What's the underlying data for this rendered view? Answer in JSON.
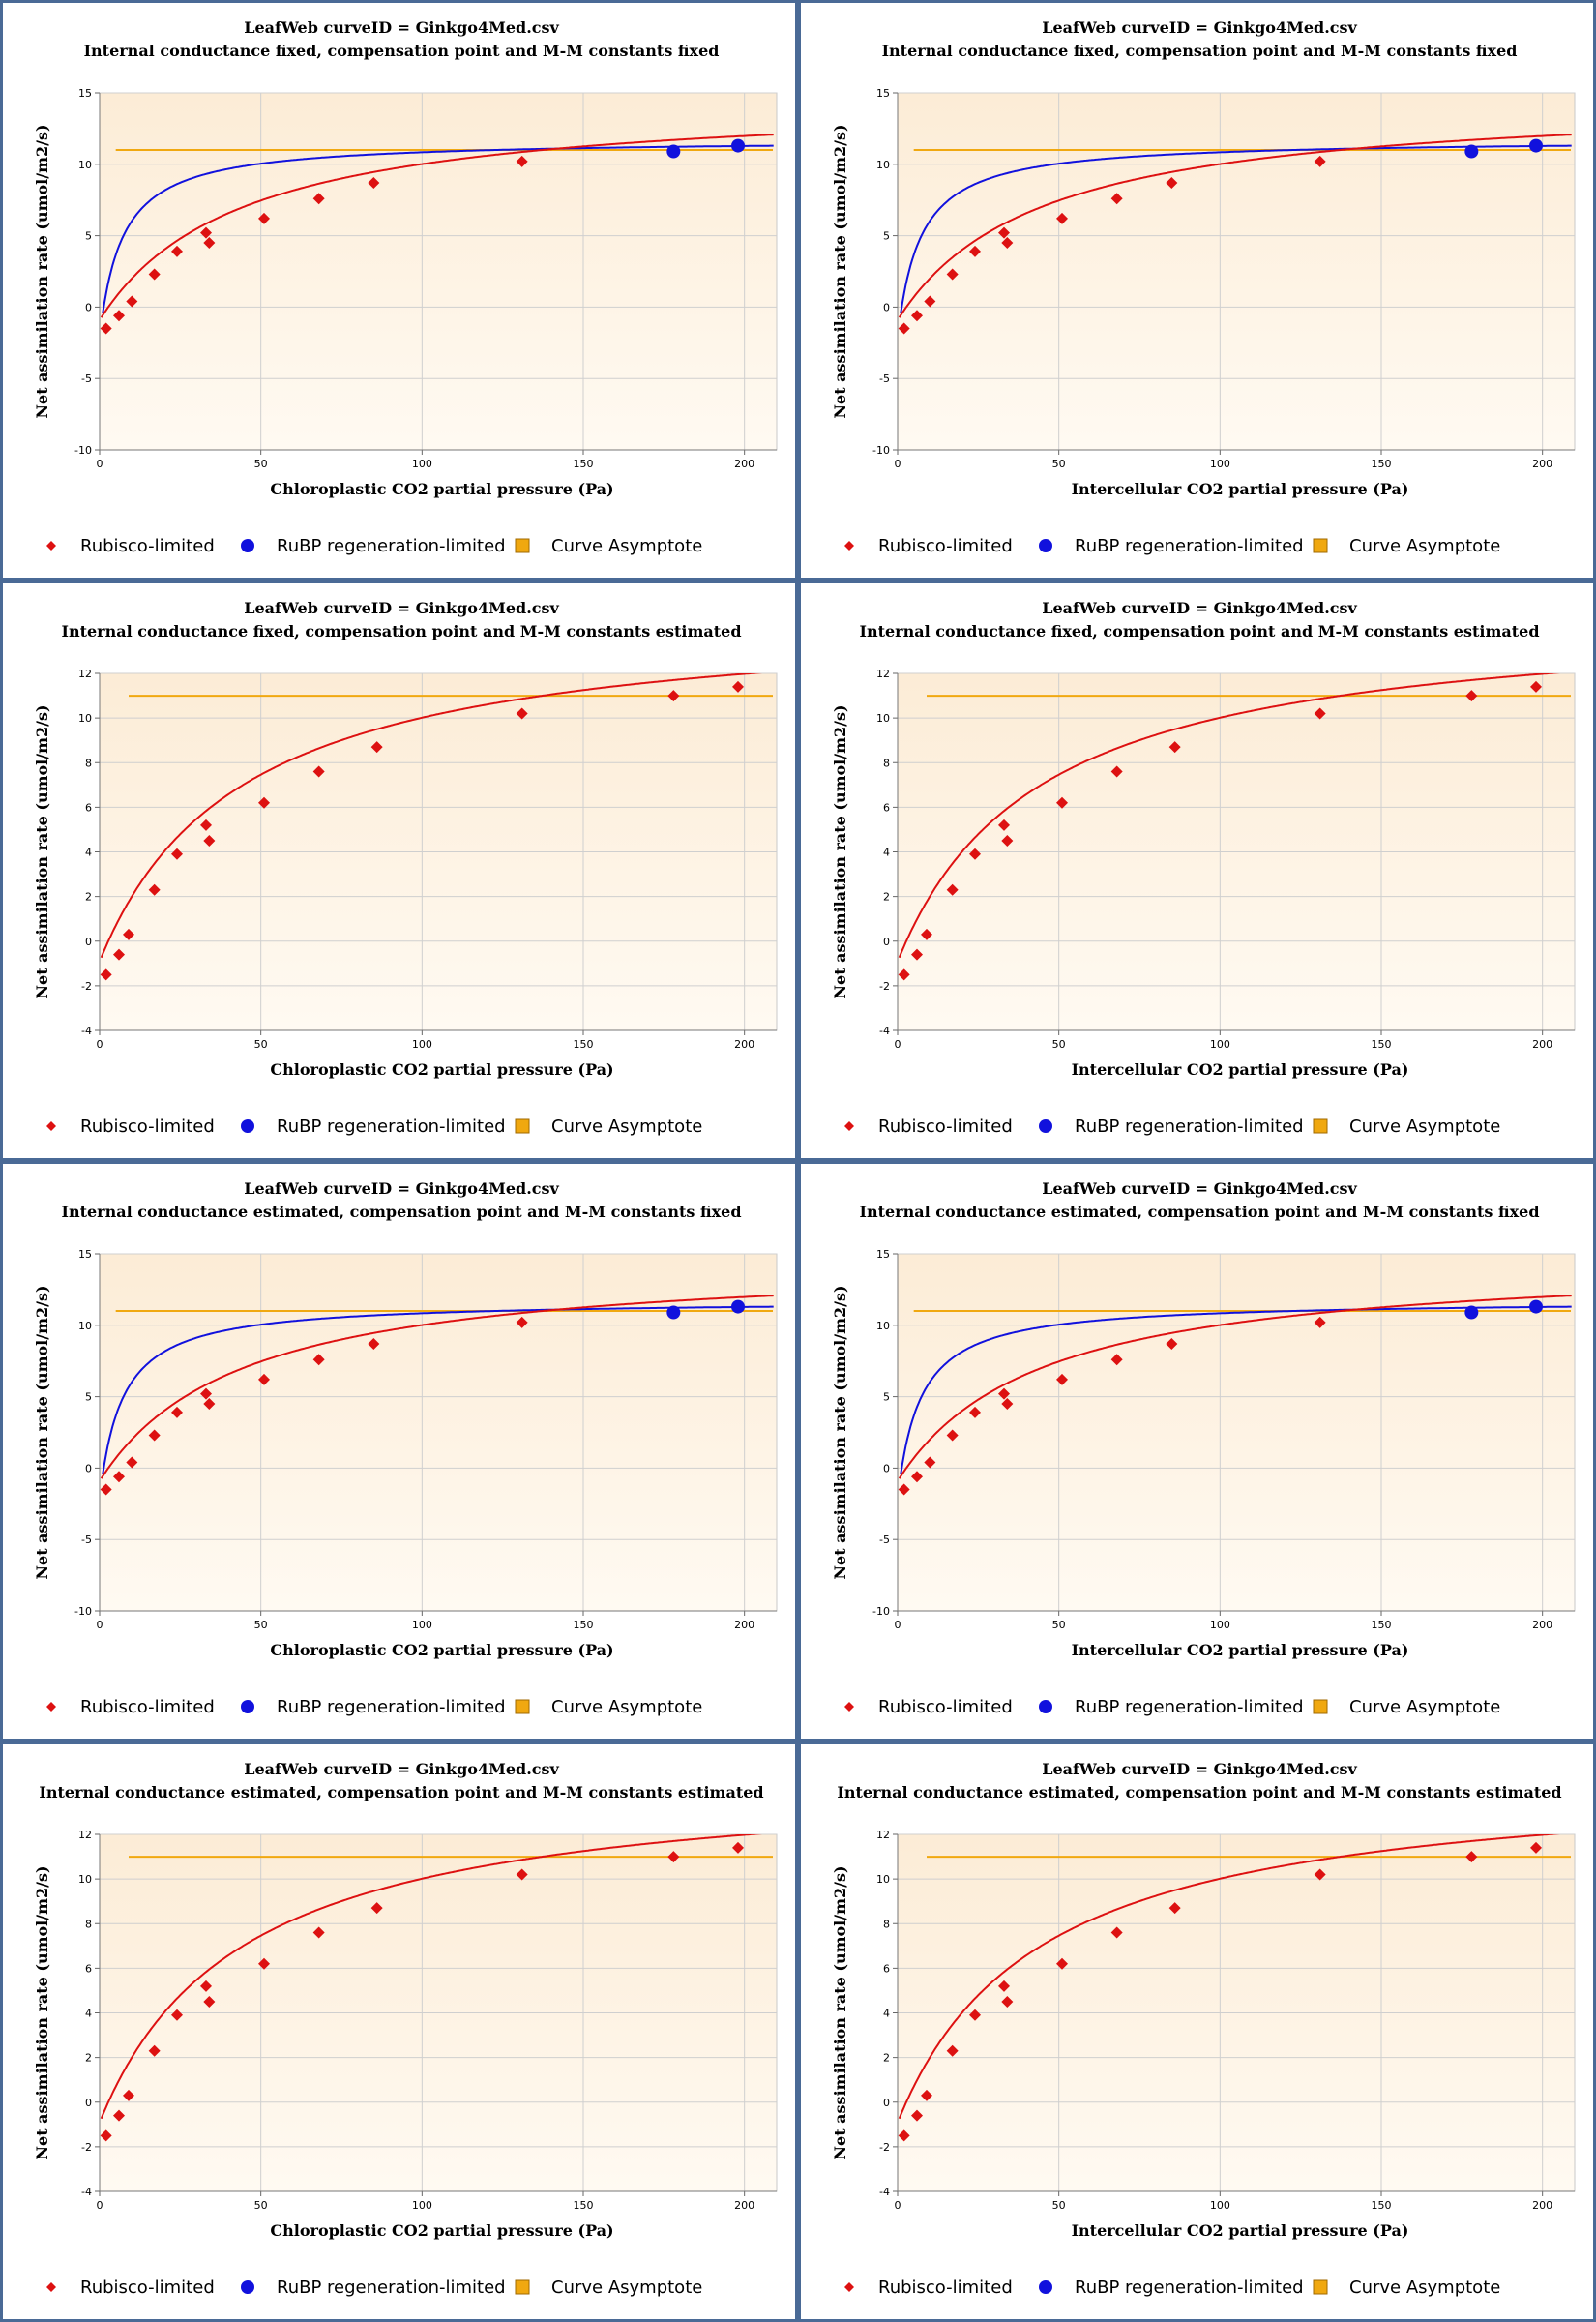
{
  "chart_data": [
    {
      "type": "scatter",
      "file_title": "LeafWeb curveID = Ginkgo4Med.csv",
      "title": "Internal conductance fixed, compensation point and M-M constants fixed",
      "xlabel": "Chloroplastic CO2 partial pressure (Pa)",
      "ylabel": "Net assimilation rate (umol/m2/s)",
      "xlim": [
        0,
        210
      ],
      "ylim": [
        -10,
        15
      ],
      "xticks": [
        0,
        50,
        100,
        150,
        200
      ],
      "yticks": [
        -10,
        -5,
        0,
        5,
        10,
        15
      ],
      "grid": true,
      "legend_position": "bottom",
      "series": [
        {
          "name": "Rubisco-limited",
          "color": "#dd1111",
          "marker": "diamond",
          "points": [
            [
              2,
              -1.5
            ],
            [
              6,
              -0.6
            ],
            [
              10,
              0.4
            ],
            [
              17,
              2.3
            ],
            [
              24,
              3.9
            ],
            [
              33,
              5.2
            ],
            [
              34,
              4.5
            ],
            [
              51,
              6.2
            ],
            [
              68,
              7.6
            ],
            [
              85,
              8.7
            ],
            [
              131,
              10.2
            ]
          ]
        },
        {
          "name": "RuBP regeneration-limited",
          "color": "#1111dd",
          "marker": "circle",
          "points": [
            [
              178,
              10.9
            ],
            [
              198,
              11.3
            ]
          ]
        },
        {
          "name": "Curve Asymptote",
          "color": "#f0a810",
          "marker": "square",
          "y": 11.0
        }
      ],
      "curves": {
        "rubisco_line": {
          "color": "#dd1111",
          "a": 14.81,
          "b": 43.9,
          "c": 2.7
        },
        "rubp_line": {
          "color": "#1111dd",
          "a": 11.75,
          "b": 7.0,
          "c": 1.27
        },
        "asymptote_from": 5
      }
    },
    {
      "type": "scatter",
      "file_title": "LeafWeb curveID = Ginkgo4Med.csv",
      "title": "Internal conductance fixed, compensation point and M-M constants fixed",
      "xlabel": "Intercellular CO2 partial pressure (Pa)",
      "ylabel": "Net assimilation rate (umol/m2/s)",
      "xlim": [
        0,
        210
      ],
      "ylim": [
        -10,
        15
      ],
      "xticks": [
        0,
        50,
        100,
        150,
        200
      ],
      "yticks": [
        -10,
        -5,
        0,
        5,
        10,
        15
      ],
      "grid": true,
      "legend_position": "bottom",
      "series": [
        {
          "name": "Rubisco-limited",
          "color": "#dd1111",
          "marker": "diamond",
          "points": [
            [
              2,
              -1.5
            ],
            [
              6,
              -0.6
            ],
            [
              10,
              0.4
            ],
            [
              17,
              2.3
            ],
            [
              24,
              3.9
            ],
            [
              33,
              5.2
            ],
            [
              34,
              4.5
            ],
            [
              51,
              6.2
            ],
            [
              68,
              7.6
            ],
            [
              85,
              8.7
            ],
            [
              131,
              10.2
            ]
          ]
        },
        {
          "name": "RuBP regeneration-limited",
          "color": "#1111dd",
          "marker": "circle",
          "points": [
            [
              178,
              10.9
            ],
            [
              198,
              11.3
            ]
          ]
        },
        {
          "name": "Curve Asymptote",
          "color": "#f0a810",
          "marker": "square",
          "y": 11.0
        }
      ],
      "curves": {
        "rubisco_line": {
          "color": "#dd1111",
          "a": 14.81,
          "b": 43.9,
          "c": 2.7
        },
        "rubp_line": {
          "color": "#1111dd",
          "a": 11.75,
          "b": 7.0,
          "c": 1.27
        },
        "asymptote_from": 5
      }
    },
    {
      "type": "scatter",
      "file_title": "LeafWeb curveID = Ginkgo4Med.csv",
      "title": "Internal conductance fixed, compensation point and M-M constants estimated",
      "xlabel": "Chloroplastic CO2 partial pressure (Pa)",
      "ylabel": "Net assimilation rate (umol/m2/s)",
      "xlim": [
        0,
        210
      ],
      "ylim": [
        -4,
        12
      ],
      "xticks": [
        0,
        50,
        100,
        150,
        200
      ],
      "yticks": [
        -4,
        -2,
        0,
        2,
        4,
        6,
        8,
        10,
        12
      ],
      "grid": true,
      "legend_position": "bottom",
      "series": [
        {
          "name": "Rubisco-limited",
          "color": "#dd1111",
          "marker": "diamond",
          "points": [
            [
              2,
              -1.5
            ],
            [
              6,
              -0.6
            ],
            [
              9,
              0.3
            ],
            [
              17,
              2.3
            ],
            [
              24,
              3.9
            ],
            [
              33,
              5.2
            ],
            [
              34,
              4.5
            ],
            [
              51,
              6.2
            ],
            [
              68,
              7.6
            ],
            [
              86,
              8.7
            ],
            [
              131,
              10.2
            ],
            [
              178,
              11.0
            ],
            [
              198,
              11.4
            ]
          ]
        },
        {
          "name": "RuBP regeneration-limited",
          "color": "#1111dd",
          "marker": "circle",
          "points": []
        },
        {
          "name": "Curve Asymptote",
          "color": "#f0a810",
          "marker": "square",
          "y": 11.0
        }
      ],
      "curves": {
        "rubisco_line": {
          "color": "#dd1111",
          "a": 14.81,
          "b": 43.9,
          "c": 2.7
        },
        "asymptote_from": 9
      }
    },
    {
      "type": "scatter",
      "file_title": "LeafWeb curveID = Ginkgo4Med.csv",
      "title": "Internal conductance fixed, compensation point and M-M constants estimated",
      "xlabel": "Intercellular CO2 partial pressure (Pa)",
      "ylabel": "Net assimilation rate (umol/m2/s)",
      "xlim": [
        0,
        210
      ],
      "ylim": [
        -4,
        12
      ],
      "xticks": [
        0,
        50,
        100,
        150,
        200
      ],
      "yticks": [
        -4,
        -2,
        0,
        2,
        4,
        6,
        8,
        10,
        12
      ],
      "grid": true,
      "legend_position": "bottom",
      "series": [
        {
          "name": "Rubisco-limited",
          "color": "#dd1111",
          "marker": "diamond",
          "points": [
            [
              2,
              -1.5
            ],
            [
              6,
              -0.6
            ],
            [
              9,
              0.3
            ],
            [
              17,
              2.3
            ],
            [
              24,
              3.9
            ],
            [
              33,
              5.2
            ],
            [
              34,
              4.5
            ],
            [
              51,
              6.2
            ],
            [
              68,
              7.6
            ],
            [
              86,
              8.7
            ],
            [
              131,
              10.2
            ],
            [
              178,
              11.0
            ],
            [
              198,
              11.4
            ]
          ]
        },
        {
          "name": "RuBP regeneration-limited",
          "color": "#1111dd",
          "marker": "circle",
          "points": []
        },
        {
          "name": "Curve Asymptote",
          "color": "#f0a810",
          "marker": "square",
          "y": 11.0
        }
      ],
      "curves": {
        "rubisco_line": {
          "color": "#dd1111",
          "a": 14.81,
          "b": 43.9,
          "c": 2.7
        },
        "asymptote_from": 9
      }
    },
    {
      "type": "scatter",
      "file_title": "LeafWeb curveID = Ginkgo4Med.csv",
      "title": "Internal conductance estimated, compensation point and M-M constants fixed",
      "xlabel": "Chloroplastic CO2 partial pressure (Pa)",
      "ylabel": "Net assimilation rate (umol/m2/s)",
      "xlim": [
        0,
        210
      ],
      "ylim": [
        -10,
        15
      ],
      "xticks": [
        0,
        50,
        100,
        150,
        200
      ],
      "yticks": [
        -10,
        -5,
        0,
        5,
        10,
        15
      ],
      "grid": true,
      "legend_position": "bottom",
      "series": [
        {
          "name": "Rubisco-limited",
          "color": "#dd1111",
          "marker": "diamond",
          "points": [
            [
              2,
              -1.5
            ],
            [
              6,
              -0.6
            ],
            [
              10,
              0.4
            ],
            [
              17,
              2.3
            ],
            [
              24,
              3.9
            ],
            [
              33,
              5.2
            ],
            [
              34,
              4.5
            ],
            [
              51,
              6.2
            ],
            [
              68,
              7.6
            ],
            [
              85,
              8.7
            ],
            [
              131,
              10.2
            ]
          ]
        },
        {
          "name": "RuBP regeneration-limited",
          "color": "#1111dd",
          "marker": "circle",
          "points": [
            [
              178,
              10.9
            ],
            [
              198,
              11.3
            ]
          ]
        },
        {
          "name": "Curve Asymptote",
          "color": "#f0a810",
          "marker": "square",
          "y": 11.0
        }
      ],
      "curves": {
        "rubisco_line": {
          "color": "#dd1111",
          "a": 14.81,
          "b": 43.9,
          "c": 2.7
        },
        "rubp_line": {
          "color": "#1111dd",
          "a": 11.75,
          "b": 7.0,
          "c": 1.27
        },
        "asymptote_from": 5
      }
    },
    {
      "type": "scatter",
      "file_title": "LeafWeb curveID = Ginkgo4Med.csv",
      "title": "Internal conductance estimated, compensation point and M-M constants fixed",
      "xlabel": "Intercellular CO2 partial pressure (Pa)",
      "ylabel": "Net assimilation rate (umol/m2/s)",
      "xlim": [
        0,
        210
      ],
      "ylim": [
        -10,
        15
      ],
      "xticks": [
        0,
        50,
        100,
        150,
        200
      ],
      "yticks": [
        -10,
        -5,
        0,
        5,
        10,
        15
      ],
      "grid": true,
      "legend_position": "bottom",
      "series": [
        {
          "name": "Rubisco-limited",
          "color": "#dd1111",
          "marker": "diamond",
          "points": [
            [
              2,
              -1.5
            ],
            [
              6,
              -0.6
            ],
            [
              10,
              0.4
            ],
            [
              17,
              2.3
            ],
            [
              24,
              3.9
            ],
            [
              33,
              5.2
            ],
            [
              34,
              4.5
            ],
            [
              51,
              6.2
            ],
            [
              68,
              7.6
            ],
            [
              85,
              8.7
            ],
            [
              131,
              10.2
            ]
          ]
        },
        {
          "name": "RuBP regeneration-limited",
          "color": "#1111dd",
          "marker": "circle",
          "points": [
            [
              178,
              10.9
            ],
            [
              198,
              11.3
            ]
          ]
        },
        {
          "name": "Curve Asymptote",
          "color": "#f0a810",
          "marker": "square",
          "y": 11.0
        }
      ],
      "curves": {
        "rubisco_line": {
          "color": "#dd1111",
          "a": 14.81,
          "b": 43.9,
          "c": 2.7
        },
        "rubp_line": {
          "color": "#1111dd",
          "a": 11.75,
          "b": 7.0,
          "c": 1.27
        },
        "asymptote_from": 5
      }
    },
    {
      "type": "scatter",
      "file_title": "LeafWeb curveID = Ginkgo4Med.csv",
      "title": "Internal conductance estimated, compensation point and M-M constants estimated",
      "xlabel": "Chloroplastic CO2 partial pressure (Pa)",
      "ylabel": "Net assimilation rate (umol/m2/s)",
      "xlim": [
        0,
        210
      ],
      "ylim": [
        -4,
        12
      ],
      "xticks": [
        0,
        50,
        100,
        150,
        200
      ],
      "yticks": [
        -4,
        -2,
        0,
        2,
        4,
        6,
        8,
        10,
        12
      ],
      "grid": true,
      "legend_position": "bottom",
      "series": [
        {
          "name": "Rubisco-limited",
          "color": "#dd1111",
          "marker": "diamond",
          "points": [
            [
              2,
              -1.5
            ],
            [
              6,
              -0.6
            ],
            [
              9,
              0.3
            ],
            [
              17,
              2.3
            ],
            [
              24,
              3.9
            ],
            [
              33,
              5.2
            ],
            [
              34,
              4.5
            ],
            [
              51,
              6.2
            ],
            [
              68,
              7.6
            ],
            [
              86,
              8.7
            ],
            [
              131,
              10.2
            ],
            [
              178,
              11.0
            ],
            [
              198,
              11.4
            ]
          ]
        },
        {
          "name": "RuBP regeneration-limited",
          "color": "#1111dd",
          "marker": "circle",
          "points": []
        },
        {
          "name": "Curve Asymptote",
          "color": "#f0a810",
          "marker": "square",
          "y": 11.0
        }
      ],
      "curves": {
        "rubisco_line": {
          "color": "#dd1111",
          "a": 14.81,
          "b": 43.9,
          "c": 2.7
        },
        "asymptote_from": 9
      }
    },
    {
      "type": "scatter",
      "file_title": "LeafWeb curveID = Ginkgo4Med.csv",
      "title": "Internal conductance estimated, compensation point and M-M constants estimated",
      "xlabel": "Intercellular CO2 partial pressure (Pa)",
      "ylabel": "Net assimilation rate (umol/m2/s)",
      "xlim": [
        0,
        210
      ],
      "ylim": [
        -4,
        12
      ],
      "xticks": [
        0,
        50,
        100,
        150,
        200
      ],
      "yticks": [
        -4,
        -2,
        0,
        2,
        4,
        6,
        8,
        10,
        12
      ],
      "grid": true,
      "legend_position": "bottom",
      "series": [
        {
          "name": "Rubisco-limited",
          "color": "#dd1111",
          "marker": "diamond",
          "points": [
            [
              2,
              -1.5
            ],
            [
              6,
              -0.6
            ],
            [
              9,
              0.3
            ],
            [
              17,
              2.3
            ],
            [
              24,
              3.9
            ],
            [
              33,
              5.2
            ],
            [
              34,
              4.5
            ],
            [
              51,
              6.2
            ],
            [
              68,
              7.6
            ],
            [
              86,
              8.7
            ],
            [
              131,
              10.2
            ],
            [
              178,
              11.0
            ],
            [
              198,
              11.4
            ]
          ]
        },
        {
          "name": "RuBP regeneration-limited",
          "color": "#1111dd",
          "marker": "circle",
          "points": []
        },
        {
          "name": "Curve Asymptote",
          "color": "#f0a810",
          "marker": "square",
          "y": 11.0
        }
      ],
      "curves": {
        "rubisco_line": {
          "color": "#dd1111",
          "a": 14.81,
          "b": 43.9,
          "c": 2.7
        },
        "asymptote_from": 9
      }
    }
  ]
}
